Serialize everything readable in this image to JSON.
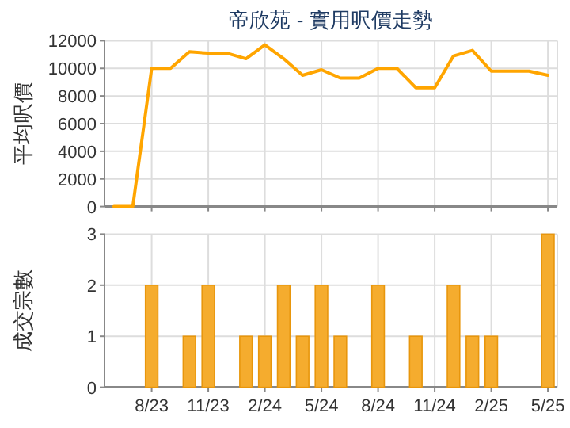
{
  "chart_data": [
    {
      "type": "line",
      "title": "帝欣苑 - 實用呎價走勢",
      "ylabel": "平均呎價",
      "categories": [
        null,
        null,
        null,
        null,
        null,
        null,
        null,
        null,
        null,
        null,
        null,
        null,
        null,
        null,
        null,
        null,
        null,
        null,
        null,
        null,
        null,
        null,
        null,
        null
      ],
      "values": [
        0,
        0,
        10000,
        10000,
        11200,
        11100,
        11100,
        10700,
        11700,
        10700,
        9500,
        9900,
        9300,
        9300,
        10000,
        10000,
        8600,
        8600,
        10900,
        11300,
        9800,
        9800,
        9800,
        9500
      ],
      "color": "#ffa500",
      "ylim": [
        0,
        12000
      ],
      "yticks": [
        0,
        2000,
        4000,
        6000,
        8000,
        10000,
        12000
      ],
      "grid": true,
      "tick_labels": "y"
    },
    {
      "type": "bar",
      "ylabel": "成交宗數",
      "categories": [
        null,
        null,
        "8/23",
        null,
        null,
        "11/23",
        null,
        null,
        "2/24",
        null,
        null,
        "5/24",
        null,
        null,
        "8/24",
        null,
        null,
        "11/24",
        null,
        null,
        "2/25",
        null,
        null,
        "5/25"
      ],
      "values": [
        0,
        0,
        2,
        0,
        1,
        2,
        0,
        1,
        1,
        2,
        1,
        2,
        1,
        0,
        2,
        0,
        1,
        0,
        2,
        1,
        1,
        0,
        0,
        3
      ],
      "color": "#f5ac2e",
      "ylim": [
        0,
        3
      ],
      "yticks": [
        0,
        1,
        2,
        3
      ],
      "grid": true
    }
  ]
}
